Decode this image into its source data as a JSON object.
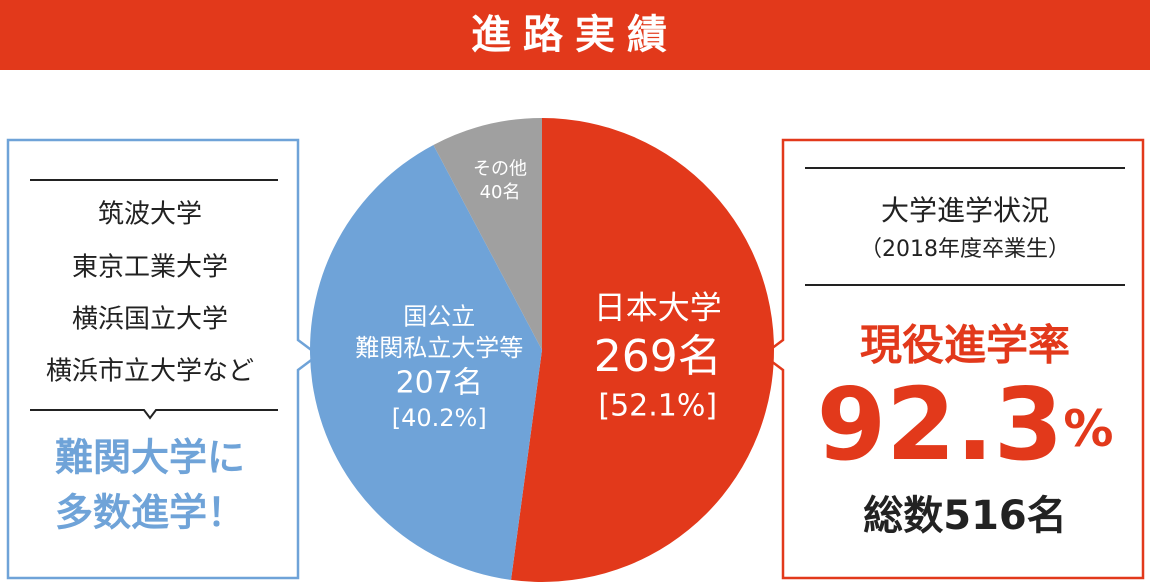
{
  "header": {
    "title": "進路実績"
  },
  "chart_data": {
    "type": "pie",
    "categories": [
      "日本大学",
      "国公立\n難関私立大学等",
      "その他"
    ],
    "values": [
      269,
      207,
      40
    ],
    "value_labels": [
      "269名",
      "207名",
      "40名"
    ],
    "percent_labels": [
      "[52.1%]",
      "[40.2%]",
      null
    ],
    "colors": [
      "#e2391b",
      "#6fa3d8",
      "#a0a0a0"
    ]
  },
  "left_panel": {
    "universities": [
      "筑波大学",
      "東京工業大学",
      "横浜国立大学",
      "横浜市立大学など"
    ],
    "highlight": [
      "難関大学に",
      "多数進学！"
    ]
  },
  "right_panel": {
    "heading": "大学進学状況",
    "subheading": "（2018年度卒業生）",
    "rate_label": "現役進学率",
    "rate_value": "92.3",
    "rate_unit": "%",
    "total": "総数516名"
  }
}
